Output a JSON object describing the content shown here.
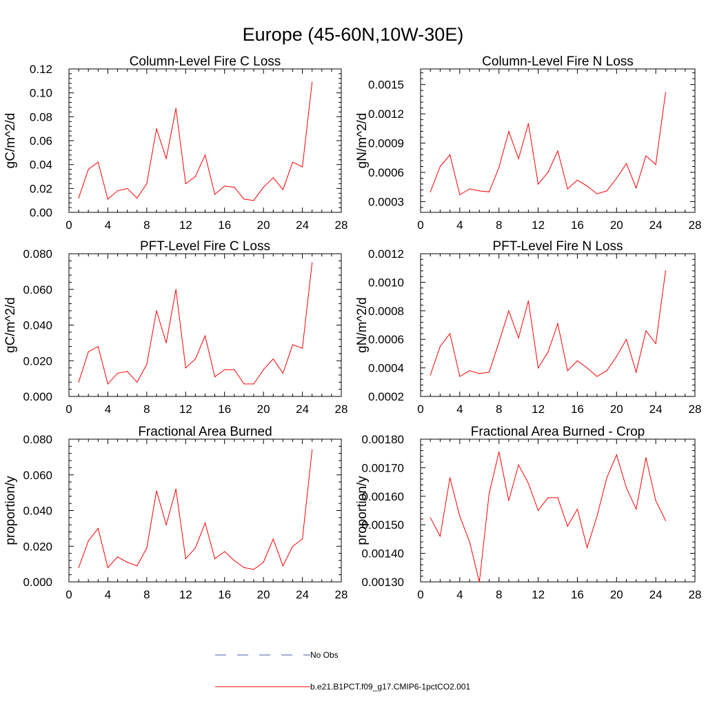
{
  "figure": {
    "title": "Europe (45-60N,10W-30E)",
    "legend": [
      {
        "label": "No Obs",
        "style": "dashed",
        "color": "#4a5aa8"
      },
      {
        "label": "b.e21.B1PCT.f09_g17.CMIP6-1pctCO2.001",
        "style": "solid",
        "color": "#ff0000"
      }
    ]
  },
  "chart_data": [
    {
      "type": "line",
      "title": "Column-Level Fire C Loss",
      "ylabel": "gC/m^2/d",
      "xlabel": "",
      "xlim": [
        0,
        28
      ],
      "ylim": [
        0,
        0.12
      ],
      "xticks": [
        "0",
        "4",
        "8",
        "12",
        "16",
        "20",
        "24",
        "28"
      ],
      "yticks": [
        "0.00",
        "0.02",
        "0.04",
        "0.06",
        "0.08",
        "0.10",
        "0.12"
      ],
      "grid": false,
      "series": [
        {
          "color": "#ff0000",
          "x": [
            1,
            2,
            3,
            4,
            5,
            6,
            7,
            8,
            9,
            10,
            11,
            12,
            13,
            14,
            15,
            16,
            17,
            18,
            19,
            20,
            21,
            22,
            23,
            24,
            25
          ],
          "y": [
            0.012,
            0.036,
            0.042,
            0.011,
            0.018,
            0.02,
            0.012,
            0.024,
            0.07,
            0.045,
            0.087,
            0.024,
            0.03,
            0.048,
            0.015,
            0.022,
            0.021,
            0.011,
            0.01,
            0.021,
            0.029,
            0.019,
            0.042,
            0.038,
            0.109
          ]
        }
      ]
    },
    {
      "type": "line",
      "title": "Column-Level Fire N Loss",
      "ylabel": "gN/m^2/d",
      "xlabel": "",
      "xlim": [
        0,
        28
      ],
      "ylim": [
        0.00019,
        0.00166
      ],
      "xticks": [
        "0",
        "4",
        "8",
        "12",
        "16",
        "20",
        "24",
        "28"
      ],
      "yticks": [
        "0.0003",
        "0.0006",
        "0.0009",
        "0.0012",
        "0.0015"
      ],
      "grid": false,
      "series": [
        {
          "color": "#ff0000",
          "x": [
            1,
            2,
            3,
            4,
            5,
            6,
            7,
            8,
            9,
            10,
            11,
            12,
            13,
            14,
            15,
            16,
            17,
            18,
            19,
            20,
            21,
            22,
            23,
            24,
            25
          ],
          "y": [
            0.0004,
            0.00066,
            0.00078,
            0.00037,
            0.00043,
            0.00041,
            0.0004,
            0.00065,
            0.00102,
            0.00074,
            0.0011,
            0.00048,
            0.0006,
            0.00082,
            0.00043,
            0.00052,
            0.00046,
            0.00038,
            0.00041,
            0.00054,
            0.00069,
            0.00044,
            0.00077,
            0.00068,
            0.00142
          ]
        }
      ]
    },
    {
      "type": "line",
      "title": "PFT-Level Fire C Loss",
      "ylabel": "gC/m^2/d",
      "xlabel": "",
      "xlim": [
        0,
        28
      ],
      "ylim": [
        0,
        0.08
      ],
      "xticks": [
        "0",
        "4",
        "8",
        "12",
        "16",
        "20",
        "24",
        "28"
      ],
      "yticks": [
        "0.000",
        "0.020",
        "0.040",
        "0.060",
        "0.080"
      ],
      "grid": false,
      "series": [
        {
          "color": "#ff0000",
          "x": [
            1,
            2,
            3,
            4,
            5,
            6,
            7,
            8,
            9,
            10,
            11,
            12,
            13,
            14,
            15,
            16,
            17,
            18,
            19,
            20,
            21,
            22,
            23,
            24,
            25
          ],
          "y": [
            0.008,
            0.025,
            0.028,
            0.007,
            0.013,
            0.014,
            0.008,
            0.018,
            0.048,
            0.03,
            0.06,
            0.016,
            0.021,
            0.034,
            0.011,
            0.015,
            0.015,
            0.007,
            0.007,
            0.015,
            0.021,
            0.013,
            0.029,
            0.027,
            0.075
          ]
        }
      ]
    },
    {
      "type": "line",
      "title": "PFT-Level Fire N Loss",
      "ylabel": "gN/m^2/d",
      "xlabel": "",
      "xlim": [
        0,
        28
      ],
      "ylim": [
        0.0002,
        0.0012
      ],
      "xticks": [
        "0",
        "4",
        "8",
        "12",
        "16",
        "20",
        "24",
        "28"
      ],
      "yticks": [
        "0.0002",
        "0.0004",
        "0.0006",
        "0.0008",
        "0.0010",
        "0.0012"
      ],
      "grid": false,
      "series": [
        {
          "color": "#ff0000",
          "x": [
            1,
            2,
            3,
            4,
            5,
            6,
            7,
            8,
            9,
            10,
            11,
            12,
            13,
            14,
            15,
            16,
            17,
            18,
            19,
            20,
            21,
            22,
            23,
            24,
            25
          ],
          "y": [
            0.00035,
            0.00055,
            0.00064,
            0.00034,
            0.00038,
            0.00036,
            0.00037,
            0.00058,
            0.0008,
            0.00061,
            0.00087,
            0.0004,
            0.00051,
            0.00071,
            0.00038,
            0.00045,
            0.0004,
            0.00034,
            0.00038,
            0.00048,
            0.0006,
            0.00037,
            0.00066,
            0.00057,
            0.00108
          ]
        }
      ]
    },
    {
      "type": "line",
      "title": "Fractional Area Burned",
      "ylabel": "proportion/y",
      "xlabel": "",
      "xlim": [
        0,
        28
      ],
      "ylim": [
        0,
        0.08
      ],
      "xticks": [
        "0",
        "4",
        "8",
        "12",
        "16",
        "20",
        "24",
        "28"
      ],
      "yticks": [
        "0.000",
        "0.020",
        "0.040",
        "0.060",
        "0.080"
      ],
      "grid": false,
      "series": [
        {
          "color": "#ff0000",
          "x": [
            1,
            2,
            3,
            4,
            5,
            6,
            7,
            8,
            9,
            10,
            11,
            12,
            13,
            14,
            15,
            16,
            17,
            18,
            19,
            20,
            21,
            22,
            23,
            24,
            25
          ],
          "y": [
            0.008,
            0.023,
            0.03,
            0.008,
            0.014,
            0.011,
            0.009,
            0.019,
            0.051,
            0.032,
            0.052,
            0.013,
            0.019,
            0.033,
            0.013,
            0.017,
            0.012,
            0.008,
            0.007,
            0.011,
            0.024,
            0.009,
            0.02,
            0.024,
            0.074
          ]
        }
      ]
    },
    {
      "type": "line",
      "title": "Fractional Area Burned - Crop",
      "ylabel": "proportion/y",
      "xlabel": "",
      "xlim": [
        0,
        28
      ],
      "ylim": [
        0.0013,
        0.0018
      ],
      "xticks": [
        "0",
        "4",
        "8",
        "12",
        "16",
        "20",
        "24",
        "28"
      ],
      "yticks": [
        "0.00130",
        "0.00140",
        "0.00150",
        "0.00160",
        "0.00170",
        "0.00180"
      ],
      "grid": false,
      "series": [
        {
          "color": "#ff0000",
          "x": [
            1,
            2,
            3,
            4,
            5,
            6,
            7,
            8,
            9,
            10,
            11,
            12,
            13,
            14,
            15,
            16,
            17,
            18,
            19,
            20,
            21,
            22,
            23,
            24,
            25
          ],
          "y": [
            0.001525,
            0.00146,
            0.001665,
            0.00153,
            0.00144,
            0.0013,
            0.00161,
            0.001755,
            0.001585,
            0.00171,
            0.001645,
            0.00155,
            0.001595,
            0.001595,
            0.001495,
            0.001555,
            0.00142,
            0.00153,
            0.001665,
            0.001745,
            0.00163,
            0.001555,
            0.001735,
            0.001585,
            0.001515
          ]
        }
      ]
    }
  ]
}
